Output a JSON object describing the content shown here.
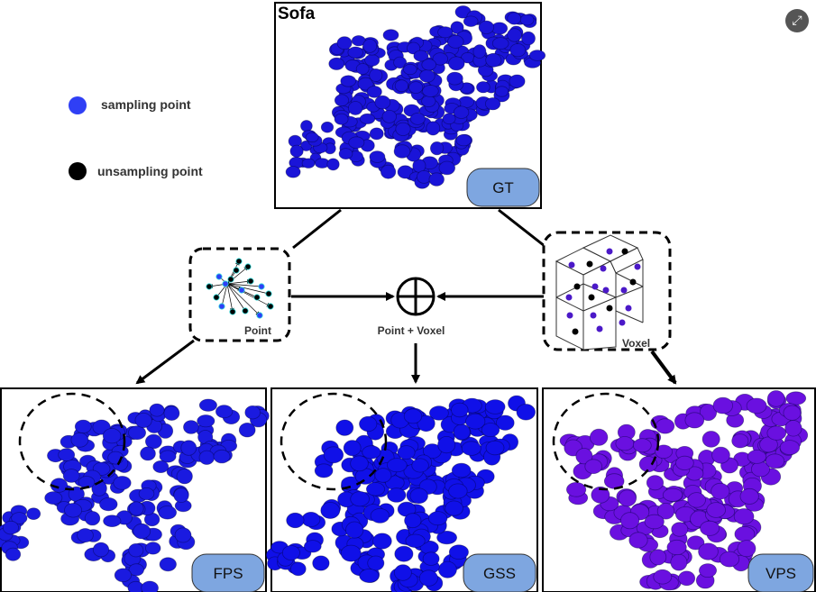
{
  "title": "Sofa",
  "legend": {
    "sampling_label": "sampling point",
    "unsampling_label": "unsampling point",
    "sampling_color": "#2f3ff5",
    "unsampling_color": "#000000"
  },
  "modules": {
    "point_label": "Point",
    "voxel_label": "Voxel",
    "fusion_label": "Point + Voxel"
  },
  "badges": {
    "gt": "GT",
    "fps": "FPS",
    "gss": "GSS",
    "vps": "VPS"
  },
  "colors": {
    "gt_points": "#1a14d8",
    "fps_points": "#1a1ae0",
    "gss_points": "#1010e8",
    "vps_points": "#6a10e0",
    "badge_fill": "#7ea6e0"
  },
  "icons": {
    "expand": "expand-icon"
  }
}
